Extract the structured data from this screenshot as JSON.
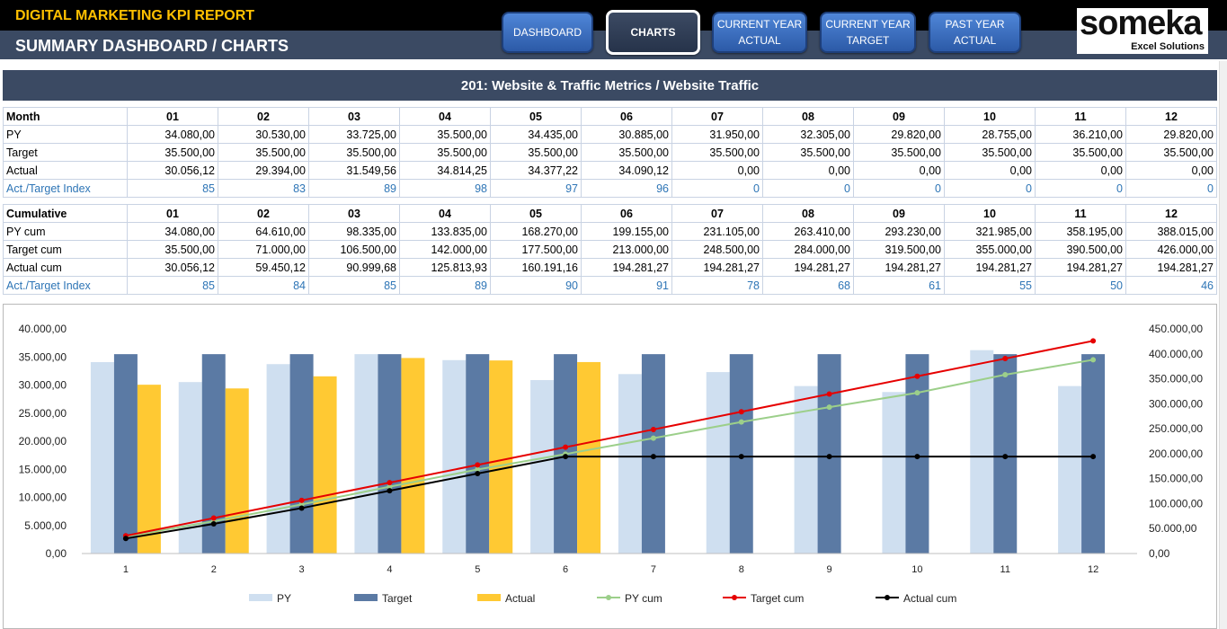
{
  "header": {
    "report_title": "DIGITAL MARKETING KPI REPORT",
    "page_title": "SUMMARY DASHBOARD / CHARTS",
    "nav": [
      {
        "line1": "DASHBOARD",
        "line2": ""
      },
      {
        "line1": "CHARTS",
        "line2": ""
      },
      {
        "line1": "CURRENT YEAR",
        "line2": "ACTUAL"
      },
      {
        "line1": "CURRENT YEAR",
        "line2": "TARGET"
      },
      {
        "line1": "PAST YEAR",
        "line2": "ACTUAL"
      }
    ],
    "logo": {
      "word": "someka",
      "sub": "Excel Solutions"
    }
  },
  "section_title": "201: Website & Traffic Metrics / Website Traffic",
  "monthly_table": {
    "header": [
      "Month",
      "01",
      "02",
      "03",
      "04",
      "05",
      "06",
      "07",
      "08",
      "09",
      "10",
      "11",
      "12"
    ],
    "rows": [
      [
        "PY",
        "34.080,00",
        "30.530,00",
        "33.725,00",
        "35.500,00",
        "34.435,00",
        "30.885,00",
        "31.950,00",
        "32.305,00",
        "29.820,00",
        "28.755,00",
        "36.210,00",
        "29.820,00"
      ],
      [
        "Target",
        "35.500,00",
        "35.500,00",
        "35.500,00",
        "35.500,00",
        "35.500,00",
        "35.500,00",
        "35.500,00",
        "35.500,00",
        "35.500,00",
        "35.500,00",
        "35.500,00",
        "35.500,00"
      ],
      [
        "Actual",
        "30.056,12",
        "29.394,00",
        "31.549,56",
        "34.814,25",
        "34.377,22",
        "34.090,12",
        "0,00",
        "0,00",
        "0,00",
        "0,00",
        "0,00",
        "0,00"
      ],
      [
        "Act./Target Index",
        "85",
        "83",
        "89",
        "98",
        "97",
        "96",
        "0",
        "0",
        "0",
        "0",
        "0",
        "0"
      ]
    ]
  },
  "cumulative_table": {
    "header": [
      "Cumulative",
      "01",
      "02",
      "03",
      "04",
      "05",
      "06",
      "07",
      "08",
      "09",
      "10",
      "11",
      "12"
    ],
    "rows": [
      [
        "PY cum",
        "34.080,00",
        "64.610,00",
        "98.335,00",
        "133.835,00",
        "168.270,00",
        "199.155,00",
        "231.105,00",
        "263.410,00",
        "293.230,00",
        "321.985,00",
        "358.195,00",
        "388.015,00"
      ],
      [
        "Target cum",
        "35.500,00",
        "71.000,00",
        "106.500,00",
        "142.000,00",
        "177.500,00",
        "213.000,00",
        "248.500,00",
        "284.000,00",
        "319.500,00",
        "355.000,00",
        "390.500,00",
        "426.000,00"
      ],
      [
        "Actual cum",
        "30.056,12",
        "59.450,12",
        "90.999,68",
        "125.813,93",
        "160.191,16",
        "194.281,27",
        "194.281,27",
        "194.281,27",
        "194.281,27",
        "194.281,27",
        "194.281,27",
        "194.281,27"
      ],
      [
        "Act./Target Index",
        "85",
        "84",
        "85",
        "89",
        "90",
        "91",
        "78",
        "68",
        "61",
        "55",
        "50",
        "46"
      ]
    ]
  },
  "chart_data": {
    "type": "bar",
    "categories": [
      "1",
      "2",
      "3",
      "4",
      "5",
      "6",
      "7",
      "8",
      "9",
      "10",
      "11",
      "12"
    ],
    "series": [
      {
        "name": "PY",
        "kind": "bar",
        "axis": "left",
        "color": "#cfdff0",
        "values": [
          34080,
          30530,
          33725,
          35500,
          34435,
          30885,
          31950,
          32305,
          29820,
          28755,
          36210,
          29820
        ]
      },
      {
        "name": "Target",
        "kind": "bar",
        "axis": "left",
        "color": "#5b7aa4",
        "values": [
          35500,
          35500,
          35500,
          35500,
          35500,
          35500,
          35500,
          35500,
          35500,
          35500,
          35500,
          35500
        ]
      },
      {
        "name": "Actual",
        "kind": "bar",
        "axis": "left",
        "color": "#ffc933",
        "values": [
          30056.12,
          29394,
          31549.56,
          34814.25,
          34377.22,
          34090.12,
          0,
          0,
          0,
          0,
          0,
          0
        ]
      },
      {
        "name": "PY cum",
        "kind": "line",
        "axis": "right",
        "color": "#9ccf8a",
        "values": [
          34080,
          64610,
          98335,
          133835,
          168270,
          199155,
          231105,
          263410,
          293230,
          321985,
          358195,
          388015
        ]
      },
      {
        "name": "Target cum",
        "kind": "line",
        "axis": "right",
        "color": "#e60000",
        "values": [
          35500,
          71000,
          106500,
          142000,
          177500,
          213000,
          248500,
          284000,
          319500,
          355000,
          390500,
          426000
        ]
      },
      {
        "name": "Actual cum",
        "kind": "line",
        "axis": "right",
        "color": "#000000",
        "values": [
          30056.12,
          59450.12,
          90999.68,
          125813.93,
          160191.16,
          194281.27,
          194281.27,
          194281.27,
          194281.27,
          194281.27,
          194281.27,
          194281.27
        ]
      }
    ],
    "ylim": [
      0,
      40000
    ],
    "y_ticks": [
      "0,00",
      "5.000,00",
      "10.000,00",
      "15.000,00",
      "20.000,00",
      "25.000,00",
      "30.000,00",
      "35.000,00",
      "40.000,00"
    ],
    "y2lim": [
      0,
      450000
    ],
    "y2_ticks": [
      "0,00",
      "50.000,00",
      "100.000,00",
      "150.000,00",
      "200.000,00",
      "250.000,00",
      "300.000,00",
      "350.000,00",
      "400.000,00",
      "450.000,00"
    ],
    "grid": false,
    "legend": "bottom"
  }
}
